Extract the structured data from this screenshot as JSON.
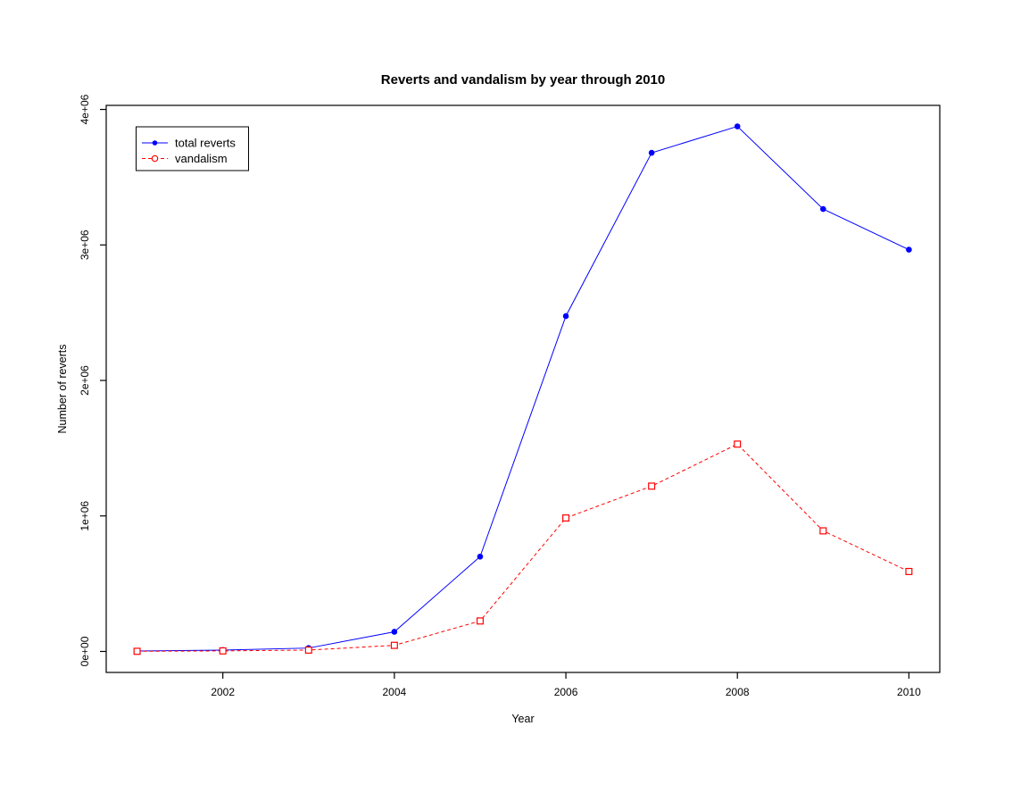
{
  "chart_data": {
    "type": "line",
    "title": "Reverts and vandalism by year through 2010",
    "xlabel": "Year",
    "ylabel": "Number of reverts",
    "x": [
      2001,
      2002,
      2003,
      2004,
      2005,
      2006,
      2007,
      2008,
      2009,
      2010
    ],
    "series": [
      {
        "name": "total reverts",
        "color": "#0000ff",
        "line_style": "solid",
        "marker": "filled-circle",
        "legend_marker": "filled-circle",
        "values": [
          3000,
          10000,
          25000,
          145000,
          700000,
          2475000,
          3680000,
          3875000,
          3265000,
          2965000
        ]
      },
      {
        "name": "vandalism",
        "color": "#ff0000",
        "line_style": "dashed",
        "marker": "open-square",
        "legend_marker": "open-circle",
        "values": [
          1000,
          4000,
          10000,
          45000,
          225000,
          985000,
          1220000,
          1530000,
          890000,
          590000
        ]
      }
    ],
    "x_ticks": [
      {
        "value": 2002,
        "label": "2002"
      },
      {
        "value": 2004,
        "label": "2004"
      },
      {
        "value": 2006,
        "label": "2006"
      },
      {
        "value": 2008,
        "label": "2008"
      },
      {
        "value": 2010,
        "label": "2010"
      }
    ],
    "y_ticks": [
      {
        "value": 0,
        "label": "0e+00"
      },
      {
        "value": 1000000,
        "label": "1e+06"
      },
      {
        "value": 2000000,
        "label": "2e+06"
      },
      {
        "value": 3000000,
        "label": "3e+06"
      },
      {
        "value": 4000000,
        "label": "4e+06"
      }
    ],
    "xlim": [
      2001,
      2010
    ],
    "ylim": [
      0,
      3875000
    ],
    "grid": false,
    "legend_position": "top-left",
    "background_color": "#ffffff",
    "frame_color": "#000000"
  }
}
